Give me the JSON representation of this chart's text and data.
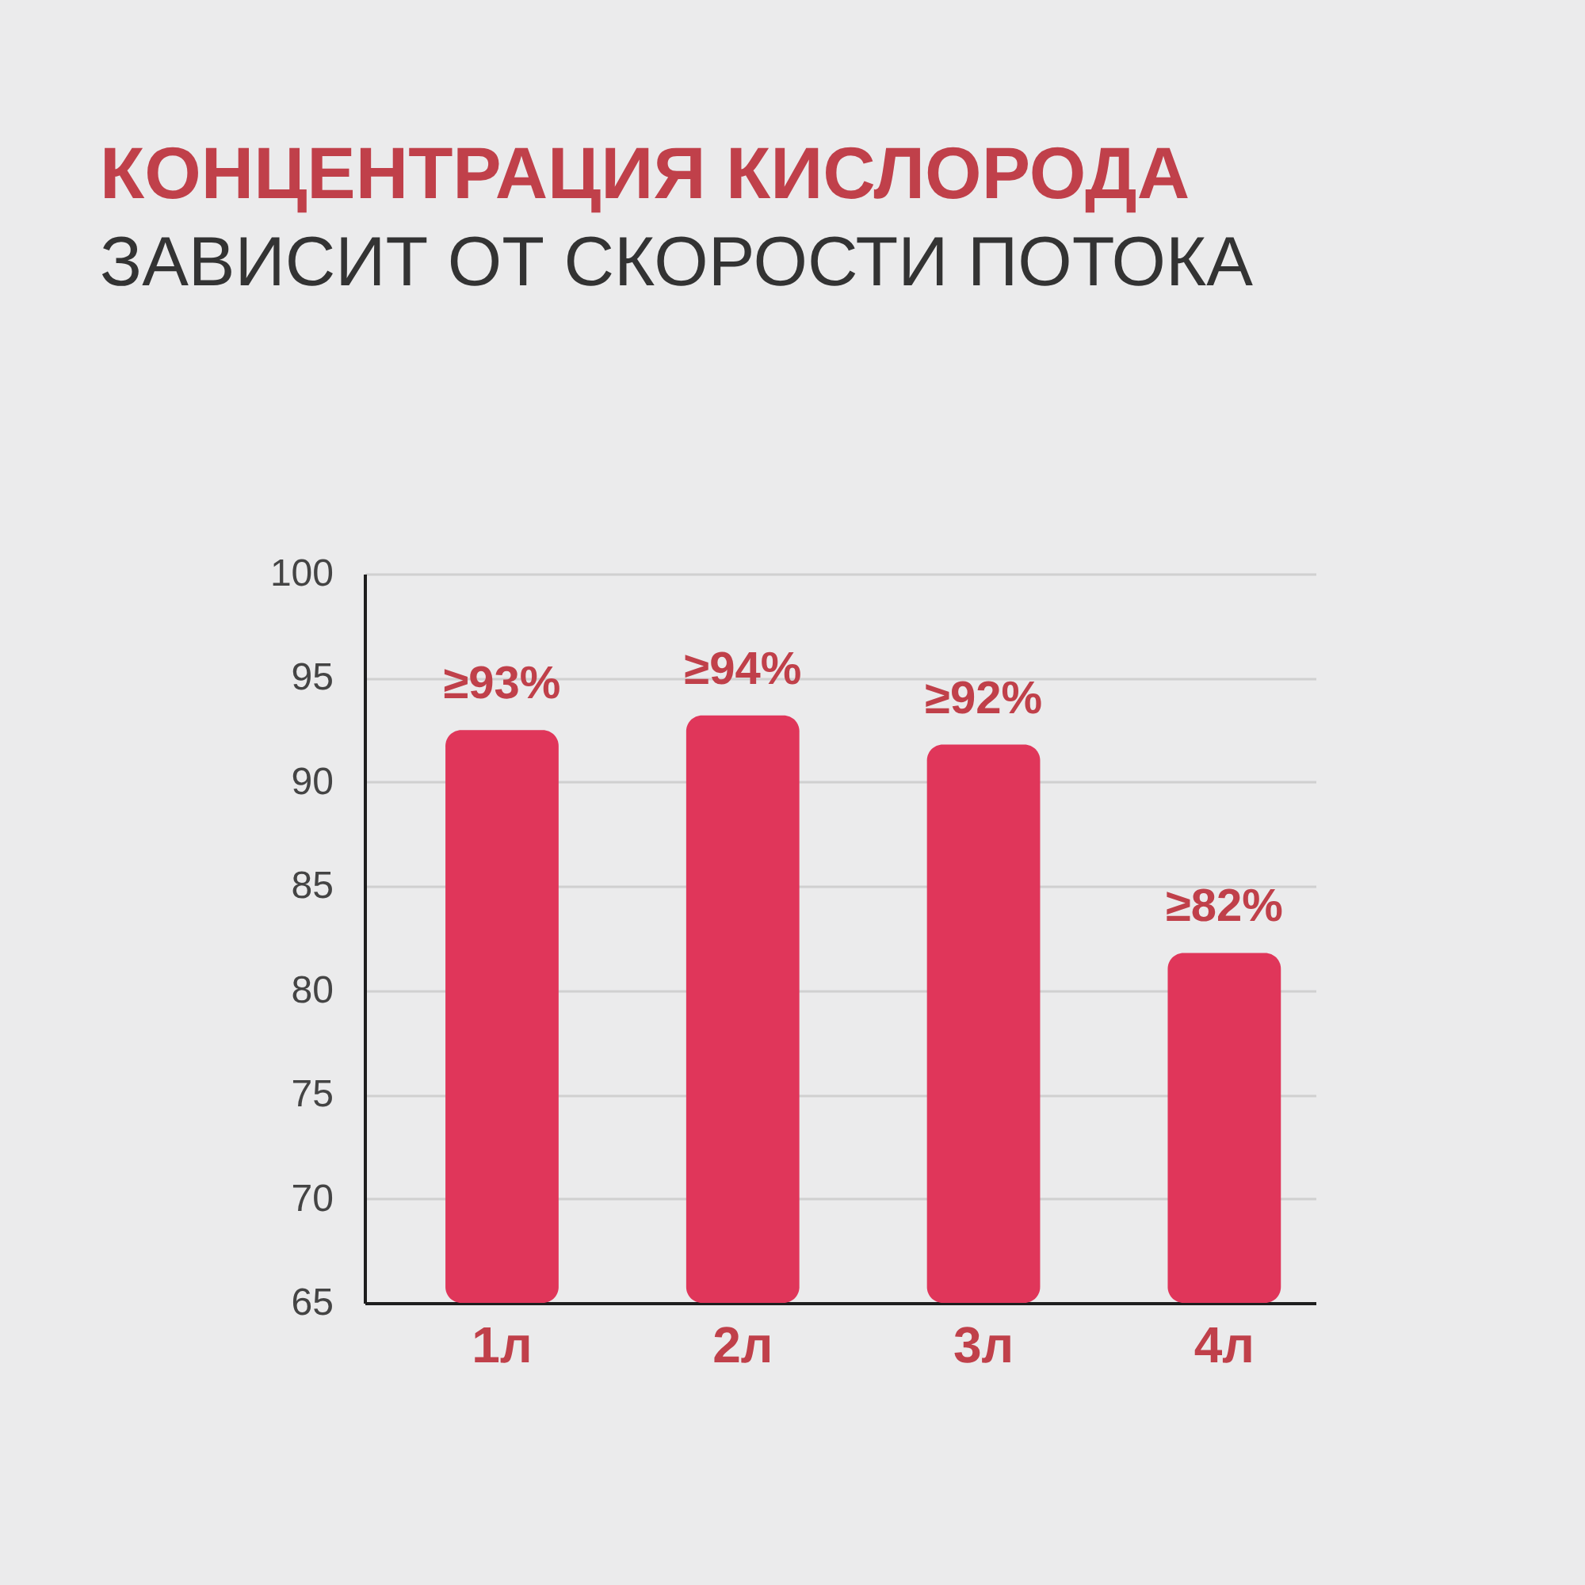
{
  "chart_data": {
    "type": "bar",
    "title": "КОНЦЕНТРАЦИЯ КИСЛОРОДА",
    "subtitle": "ЗАВИСИТ ОТ СКОРОСТИ ПОТОКА",
    "categories": [
      "1л",
      "2л",
      "3л",
      "4л"
    ],
    "values": [
      92.5,
      93.2,
      91.8,
      81.8
    ],
    "value_labels": [
      "≥93%",
      "≥94%",
      "≥92%",
      "≥82%"
    ],
    "color": "#e0365a",
    "ylim": [
      65,
      100
    ],
    "yticks": [
      65,
      70,
      75,
      80,
      85,
      90,
      95,
      100
    ],
    "grid": "y"
  }
}
